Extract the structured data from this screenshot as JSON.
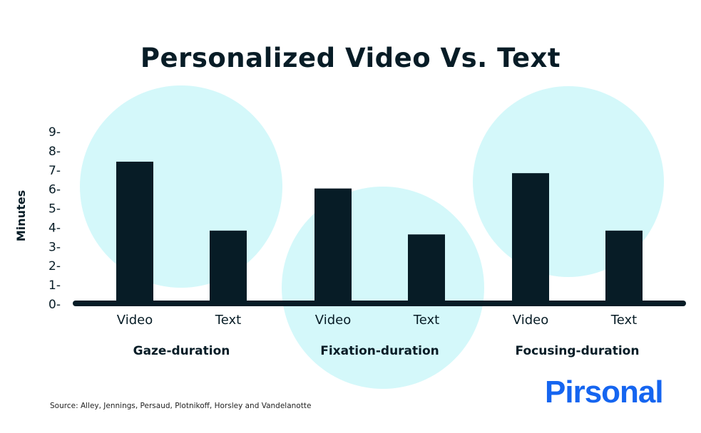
{
  "chart_data": {
    "type": "bar",
    "title": "Personalized Video Vs. Text",
    "ylabel": "Minutes",
    "xlabel": "",
    "ylim": [
      0,
      9
    ],
    "yticks": [
      "0-",
      "1-",
      "2-",
      "3-",
      "4-",
      "5-",
      "6-",
      "7-",
      "8-",
      "9-"
    ],
    "groups": [
      {
        "label": "Gaze-duration",
        "bars": [
          {
            "label": "Video",
            "value": 7.4
          },
          {
            "label": "Text",
            "value": 3.8
          }
        ]
      },
      {
        "label": "Fixation-duration",
        "bars": [
          {
            "label": "Video",
            "value": 6.0
          },
          {
            "label": "Text",
            "value": 3.6
          }
        ]
      },
      {
        "label": "Focusing-duration",
        "bars": [
          {
            "label": "Video",
            "value": 6.8
          },
          {
            "label": "Text",
            "value": 3.8
          }
        ]
      }
    ],
    "grid": false,
    "colors": {
      "bar": "#071c26",
      "circle": "#d4f8fa",
      "text": "#071c26"
    }
  },
  "source": "Source: Alley, Jennings, Persaud, Plotnikoff, Horsley and Vandelanotte",
  "logo": {
    "text": "Pirsonal",
    "color": "#1565f0"
  }
}
